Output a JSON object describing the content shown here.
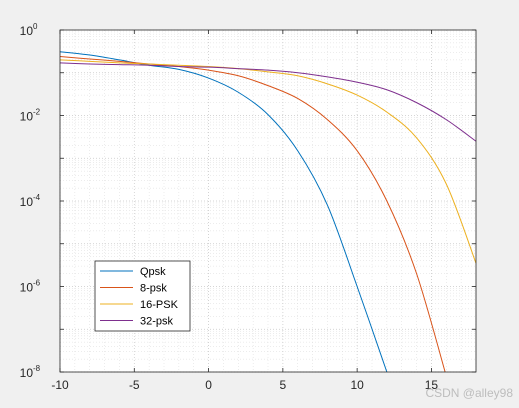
{
  "chart_data": {
    "type": "line",
    "xlim": [
      -10,
      18
    ],
    "ylim": [
      1e-08,
      1
    ],
    "yscale": "log",
    "grid": "major-and-minor",
    "legend_position": "bottom-left",
    "x_ticks": [
      "-10",
      "-5",
      "0",
      "5",
      "10",
      "15"
    ],
    "y_ticks": [
      {
        "base": "10",
        "exp": "0"
      },
      {
        "base": "10",
        "exp": "-2"
      },
      {
        "base": "10",
        "exp": "-4"
      },
      {
        "base": "10",
        "exp": "-6"
      },
      {
        "base": "10",
        "exp": "-8"
      }
    ],
    "x": [
      -10,
      -8,
      -6,
      -4,
      -2,
      0,
      2,
      4,
      6,
      8,
      10,
      12,
      14,
      16,
      18
    ],
    "series": [
      {
        "name": "Qpsk",
        "color": "#0072BD",
        "values": [
          0.31,
          0.26,
          0.2,
          0.15,
          0.12,
          0.075,
          0.035,
          0.0105,
          0.0015,
          8e-05,
          1e-06,
          1e-08,
          null,
          null,
          null
        ]
      },
      {
        "name": "8-psk",
        "color": "#D95319",
        "values": [
          0.24,
          0.21,
          0.185,
          0.16,
          0.14,
          0.115,
          0.085,
          0.05,
          0.025,
          0.008,
          0.0015,
          0.0001,
          2e-06,
          8e-09,
          null
        ]
      },
      {
        "name": "16-PSK",
        "color": "#EDB120",
        "values": [
          0.2,
          0.185,
          0.17,
          0.16,
          0.15,
          0.14,
          0.125,
          0.105,
          0.085,
          0.055,
          0.03,
          0.012,
          0.003,
          0.00025,
          3.5e-06
        ]
      },
      {
        "name": "32-psk",
        "color": "#7E2F8E",
        "values": [
          0.17,
          0.16,
          0.155,
          0.15,
          0.14,
          0.135,
          0.125,
          0.115,
          0.1,
          0.08,
          0.06,
          0.04,
          0.02,
          0.008,
          0.0025
        ]
      }
    ]
  },
  "watermark": "CSDN @alley98"
}
